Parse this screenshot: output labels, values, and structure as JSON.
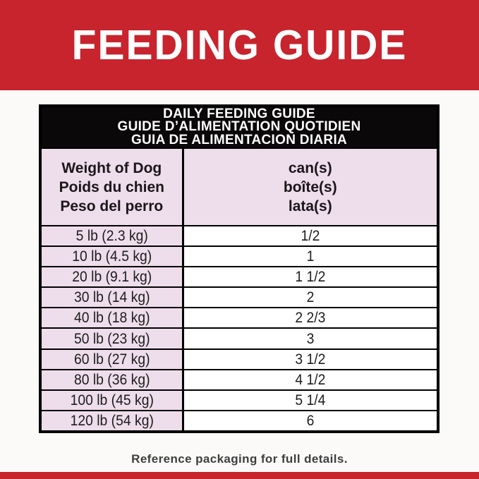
{
  "banner": {
    "title": "FEEDING GUIDE"
  },
  "table": {
    "header_lines": [
      "DAILY FEEDING GUIDE",
      "GUIDE D’ALIMENTATION QUOTIDIEN",
      "GUIA DE ALIMENTACION DIARIA"
    ],
    "columns": {
      "weight": {
        "lines": [
          "Weight of Dog",
          "Poids du chien",
          "Peso del perro"
        ]
      },
      "cans": {
        "lines": [
          "can(s)",
          "boîte(s)",
          "lata(s)"
        ]
      }
    },
    "rows": [
      {
        "weight": "5 lb (2.3 kg)",
        "cans": "1/2"
      },
      {
        "weight": "10 lb (4.5 kg)",
        "cans": "1"
      },
      {
        "weight": "20 lb (9.1 kg)",
        "cans": "1 1/2"
      },
      {
        "weight": "30 lb (14 kg)",
        "cans": "2"
      },
      {
        "weight": "40 lb (18 kg)",
        "cans": "2 2/3"
      },
      {
        "weight": "50 lb (23 kg)",
        "cans": "3"
      },
      {
        "weight": "60 lb (27 kg)",
        "cans": "3 1/2"
      },
      {
        "weight": "80 lb (36 kg)",
        "cans": "4 1/2"
      },
      {
        "weight": "100 lb (45 kg)",
        "cans": "5 1/4"
      },
      {
        "weight": "120 lb (54 kg)",
        "cans": "6"
      }
    ]
  },
  "footer": {
    "note": "Reference packaging for full details."
  },
  "colors": {
    "banner_red": "#c7242e",
    "cell_pink": "#eeddeb",
    "header_black": "#0b0809",
    "text_dark": "#1d1d1d"
  }
}
